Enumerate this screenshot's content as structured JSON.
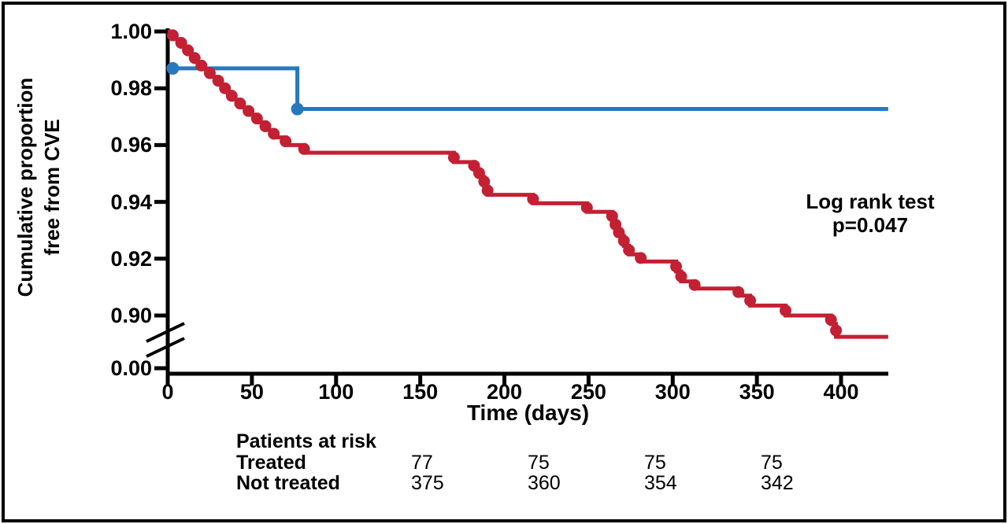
{
  "figure": {
    "background": "#ffffff",
    "border_color": "#000000",
    "axis_color": "#000000"
  },
  "chart_data": {
    "type": "line",
    "subtype": "kaplan-meier-step-curve",
    "xlabel": "Time (days)",
    "ylabel_line1": "Cumulative proportion",
    "ylabel_line2": "free from CVE",
    "x_ticks": [
      0,
      50,
      100,
      150,
      200,
      250,
      300,
      350,
      400
    ],
    "y_ticks": [
      "1.00",
      "0.98",
      "0.96",
      "0.94",
      "0.92",
      "0.90"
    ],
    "y_break_tick": "0.00",
    "x_range": [
      0,
      428
    ],
    "y_axis_break": true,
    "grid": false,
    "legend": "none",
    "annotation": {
      "line1": "Log rank test",
      "line2": "p=0.047"
    },
    "series": [
      {
        "name": "Treated",
        "color": "#2878be",
        "start": {
          "day": 3,
          "value": 0.987
        },
        "steps": [
          [
            77,
            0.9727
          ]
        ],
        "end_day": 428,
        "dots": [
          [
            3,
            0.987
          ],
          [
            77,
            0.9727
          ]
        ],
        "dot_mode": "explicit"
      },
      {
        "name": "Not treated",
        "color": "#c32033",
        "start": {
          "day": 0,
          "value": 1.0
        },
        "steps": [
          [
            3,
            0.9973
          ],
          [
            8,
            0.9947
          ],
          [
            12,
            0.992
          ],
          [
            16,
            0.9893
          ],
          [
            20,
            0.9867
          ],
          [
            25,
            0.984
          ],
          [
            30,
            0.9813
          ],
          [
            34,
            0.9787
          ],
          [
            38,
            0.976
          ],
          [
            43,
            0.9733
          ],
          [
            48,
            0.9707
          ],
          [
            53,
            0.968
          ],
          [
            58,
            0.9653
          ],
          [
            63,
            0.9627
          ],
          [
            70,
            0.96
          ],
          [
            81,
            0.9573
          ],
          [
            170,
            0.954
          ],
          [
            182,
            0.9515
          ],
          [
            185,
            0.9488
          ],
          [
            188,
            0.9455
          ],
          [
            190,
            0.9425
          ],
          [
            217,
            0.9395
          ],
          [
            249,
            0.9365
          ],
          [
            264,
            0.9335
          ],
          [
            266,
            0.9305
          ],
          [
            268,
            0.928
          ],
          [
            271,
            0.9245
          ],
          [
            274,
            0.9215
          ],
          [
            281,
            0.919
          ],
          [
            302,
            0.9155
          ],
          [
            305,
            0.912
          ],
          [
            313,
            0.9095
          ],
          [
            339,
            0.907
          ],
          [
            346,
            0.9035
          ],
          [
            367,
            0.9
          ],
          [
            394,
            0.897
          ],
          [
            397,
            0.8925
          ]
        ],
        "end_day": 428,
        "dot_mode": "step-mid"
      }
    ],
    "at_risk": {
      "title": "Patients at risk",
      "rows": [
        {
          "label": "Treated",
          "values": [
            "77",
            "75",
            "75",
            "75"
          ]
        },
        {
          "label": "Not treated",
          "values": [
            "375",
            "360",
            "354",
            "342"
          ]
        }
      ]
    }
  }
}
